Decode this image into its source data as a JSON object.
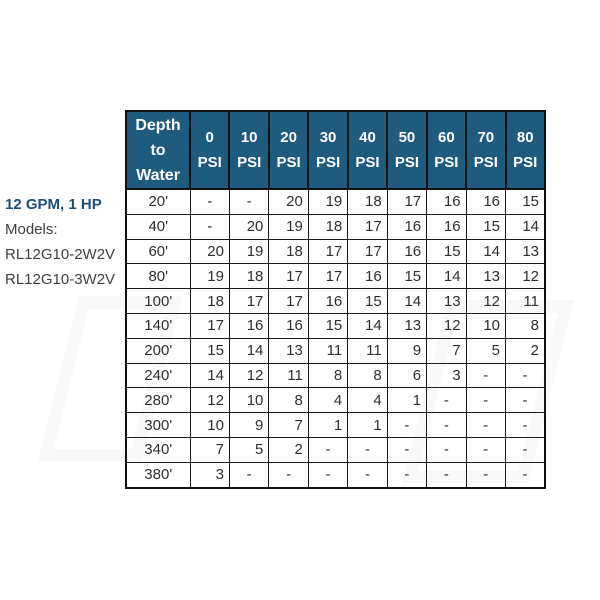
{
  "side_label": {
    "title": "12 GPM, 1 HP",
    "models_label": "Models:",
    "models": [
      "RL12G10-2W2V",
      "RL12G10-3W2V"
    ],
    "title_color": "#1f4e79"
  },
  "table": {
    "header": {
      "depth_label": "Depth to Water",
      "psi_columns": [
        "0",
        "10",
        "20",
        "30",
        "40",
        "50",
        "60",
        "70",
        "80"
      ],
      "unit": "PSI",
      "bg_color": "#1e5b7e",
      "text_color": "#ffffff"
    },
    "rows": [
      {
        "depth": "20'",
        "values": [
          "-",
          "-",
          "20",
          "19",
          "18",
          "17",
          "16",
          "16",
          "15"
        ]
      },
      {
        "depth": "40'",
        "values": [
          "-",
          "20",
          "19",
          "18",
          "17",
          "16",
          "16",
          "15",
          "14"
        ]
      },
      {
        "depth": "60'",
        "values": [
          "20",
          "19",
          "18",
          "17",
          "17",
          "16",
          "15",
          "14",
          "13"
        ]
      },
      {
        "depth": "80'",
        "values": [
          "19",
          "18",
          "17",
          "17",
          "16",
          "15",
          "14",
          "13",
          "12"
        ]
      },
      {
        "depth": "100'",
        "values": [
          "18",
          "17",
          "17",
          "16",
          "15",
          "14",
          "13",
          "12",
          "11"
        ]
      },
      {
        "depth": "140'",
        "values": [
          "17",
          "16",
          "16",
          "15",
          "14",
          "13",
          "12",
          "10",
          "8"
        ]
      },
      {
        "depth": "200'",
        "values": [
          "15",
          "14",
          "13",
          "11",
          "11",
          "9",
          "7",
          "5",
          "2"
        ]
      },
      {
        "depth": "240'",
        "values": [
          "14",
          "12",
          "11",
          "8",
          "8",
          "6",
          "3",
          "-",
          "-"
        ]
      },
      {
        "depth": "280'",
        "values": [
          "12",
          "10",
          "8",
          "4",
          "4",
          "1",
          "-",
          "-",
          "-"
        ]
      },
      {
        "depth": "300'",
        "values": [
          "10",
          "9",
          "7",
          "1",
          "1",
          "-",
          "-",
          "-",
          "-"
        ]
      },
      {
        "depth": "340'",
        "values": [
          "7",
          "5",
          "2",
          "-",
          "-",
          "-",
          "-",
          "-",
          "-"
        ]
      },
      {
        "depth": "380'",
        "values": [
          "3",
          "-",
          "-",
          "-",
          "-",
          "-",
          "-",
          "-",
          "-"
        ]
      }
    ]
  }
}
